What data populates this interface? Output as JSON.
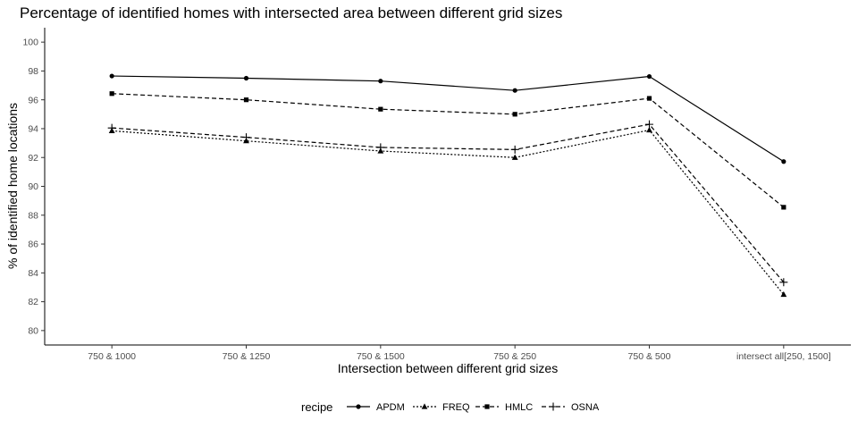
{
  "chart_data": {
    "type": "line",
    "title": "Percentage of identified homes with intersected area between different grid sizes",
    "xlabel": "Intersection between different grid sizes",
    "ylabel": "% of identified home locations",
    "categories": [
      "750 & 1000",
      "750 & 1250",
      "750 & 1500",
      "750 & 250",
      "750 & 500",
      "intersect all[250, 1500]"
    ],
    "ylim": [
      79,
      101
    ],
    "yticks": [
      80,
      82,
      84,
      86,
      88,
      90,
      92,
      94,
      96,
      98,
      100
    ],
    "grid": false,
    "legend": {
      "title": "recipe",
      "position": "bottom"
    },
    "series": [
      {
        "name": "APDM",
        "values": [
          97.65,
          97.5,
          97.3,
          96.65,
          97.62,
          91.72
        ],
        "dash": "solid",
        "marker": "circle"
      },
      {
        "name": "FREQ",
        "values": [
          93.85,
          93.15,
          92.45,
          92.0,
          93.9,
          82.5
        ],
        "dash": "dotted",
        "marker": "triangle"
      },
      {
        "name": "HMLC",
        "values": [
          96.43,
          96.0,
          95.35,
          95.0,
          96.1,
          88.55
        ],
        "dash": "dashed",
        "marker": "square"
      },
      {
        "name": "OSNA",
        "values": [
          94.05,
          93.4,
          92.7,
          92.55,
          94.3,
          83.35
        ],
        "dash": "dashed",
        "marker": "plus"
      }
    ]
  }
}
